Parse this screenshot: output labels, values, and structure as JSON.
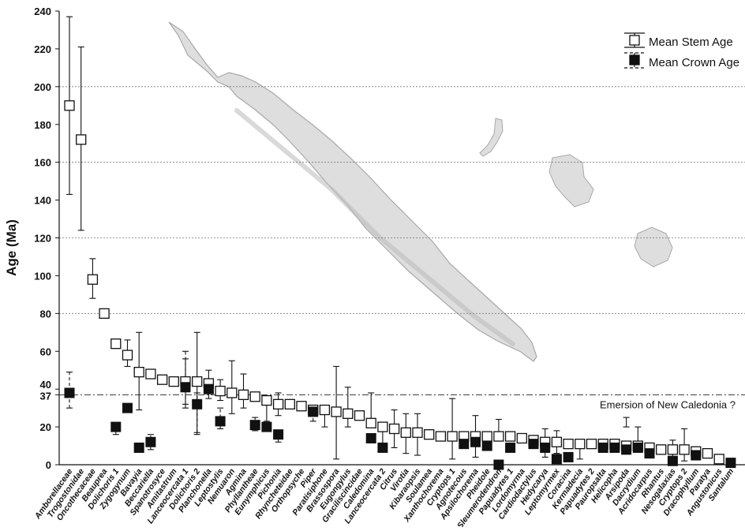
{
  "chart_data": {
    "type": "scatter",
    "ylabel": "Age (Ma)",
    "ylim": [
      0,
      240
    ],
    "yticks": [
      0,
      20,
      40,
      60,
      80,
      100,
      120,
      140,
      160,
      180,
      200,
      220,
      240
    ],
    "extra_yticks": [
      37
    ],
    "grid_lines": [
      80,
      120,
      160,
      200
    ],
    "grid": true,
    "legend_position": "top-right",
    "legend": [
      {
        "name": "Mean Stem Age",
        "marker": "open-square"
      },
      {
        "name": "Mean Crown Age",
        "marker": "filled-square"
      }
    ],
    "reference_line": {
      "y": 37,
      "label": "Emersion of New Caledonia ?"
    },
    "categories": [
      "Amborellaceae",
      "Trogostonidae",
      "Oncothecaceae",
      "Beauprea",
      "Dolichoris 1",
      "Zygogynum",
      "Bavayia",
      "Beccariella",
      "Spanotrosyce",
      "Amitastrum",
      "Lanceocercata 1",
      "Dolichoris 2",
      "Planchonella",
      "Leptostylis",
      "Nemuaron",
      "Agmina",
      "Phyllantheae",
      "Eunymphicus",
      "Pichonia",
      "Rhyncheteidae",
      "Orthopsyche",
      "Piper",
      "Paratisiphone",
      "Brassospora",
      "Eugongylus",
      "Graciliscincidae",
      "Caledomina",
      "Lanceocercata 2",
      "Citrus",
      "Virotia",
      "Kibaraopsis",
      "Soulamea",
      "Xanthochorema",
      "Cryptops 1",
      "Agnotecous",
      "Apsilochorema",
      "Pheidole",
      "Sleumerodendron",
      "Papuadytes 1",
      "Lordomyrma",
      "Cardiodactylus",
      "Hedycarya",
      "Leptomyrmex",
      "Coracina",
      "Kermadecia",
      "Papuadytes 2",
      "Pauropsalta",
      "Helicopha",
      "Arsipoda",
      "Dacrydium",
      "Acridocarpus",
      "Rhantus",
      "Nesogalaxias",
      "Cryptops 2",
      "Dracophyllum",
      "Paratya",
      "Angustonicus",
      "Santalum"
    ],
    "series": [
      {
        "name": "Mean Stem Age",
        "values": [
          190,
          172,
          98,
          80,
          64,
          58,
          49,
          48,
          45,
          44,
          44,
          44,
          43,
          39,
          38,
          37,
          36,
          34,
          32,
          32,
          31,
          29,
          29,
          28,
          27,
          26,
          22,
          20,
          19,
          17,
          17,
          16,
          15,
          15,
          15,
          15,
          15,
          15,
          15,
          14,
          13,
          12,
          12,
          11,
          11,
          11,
          11,
          11,
          10,
          10,
          9,
          8,
          8,
          8,
          7,
          6,
          3,
          null
        ],
        "error_low": [
          143,
          124,
          88,
          null,
          null,
          52,
          29,
          null,
          null,
          null,
          30,
          16,
          35,
          34,
          27,
          30,
          null,
          23,
          26,
          null,
          null,
          null,
          20,
          3,
          20,
          null,
          null,
          10,
          9,
          6,
          5,
          null,
          null,
          3,
          null,
          4,
          null,
          null,
          null,
          null,
          null,
          4,
          6,
          null,
          3,
          null,
          null,
          null,
          20,
          null,
          6,
          null,
          1,
          2,
          null,
          null,
          1,
          null
        ],
        "error_high": [
          237,
          221,
          109,
          null,
          null,
          66,
          70,
          null,
          null,
          null,
          56,
          70,
          50,
          45,
          55,
          48,
          null,
          null,
          38,
          null,
          null,
          null,
          null,
          52,
          41,
          null,
          38,
          null,
          29,
          27,
          27,
          null,
          null,
          35,
          null,
          26,
          null,
          24,
          null,
          null,
          null,
          19,
          18,
          null,
          null,
          null,
          null,
          null,
          25,
          20,
          10,
          null,
          13,
          19,
          null,
          8,
          5,
          null
        ]
      },
      {
        "name": "Mean Crown Age",
        "values": [
          38,
          null,
          null,
          null,
          20,
          30,
          9,
          12,
          null,
          null,
          41,
          32,
          40,
          23,
          null,
          null,
          21,
          20,
          16,
          null,
          null,
          28,
          null,
          null,
          null,
          null,
          14,
          9,
          null,
          null,
          null,
          null,
          null,
          null,
          11,
          12,
          10,
          0,
          9,
          null,
          11,
          9,
          3,
          4,
          null,
          null,
          9,
          9,
          8,
          9,
          6,
          null,
          2,
          null,
          5,
          null,
          null,
          1
        ],
        "error_low": [
          30,
          null,
          null,
          null,
          16,
          null,
          null,
          8,
          null,
          null,
          32,
          17,
          null,
          19,
          null,
          null,
          18,
          null,
          12,
          null,
          null,
          23,
          null,
          null,
          null,
          null,
          null,
          null,
          null,
          null,
          null,
          null,
          null,
          null,
          null,
          null,
          null,
          null,
          null,
          null,
          null,
          null,
          null,
          null,
          null,
          null,
          null,
          null,
          null,
          null,
          null,
          null,
          null,
          null,
          null,
          null,
          null,
          null
        ],
        "error_high": [
          49,
          null,
          null,
          null,
          null,
          null,
          null,
          16,
          null,
          null,
          60,
          38,
          null,
          30,
          null,
          null,
          25,
          null,
          null,
          null,
          null,
          30,
          null,
          null,
          null,
          null,
          null,
          null,
          null,
          null,
          null,
          null,
          null,
          null,
          null,
          null,
          null,
          null,
          null,
          null,
          null,
          null,
          null,
          null,
          null,
          null,
          null,
          null,
          null,
          null,
          null,
          null,
          null,
          null,
          null,
          null,
          null,
          null
        ]
      }
    ]
  }
}
